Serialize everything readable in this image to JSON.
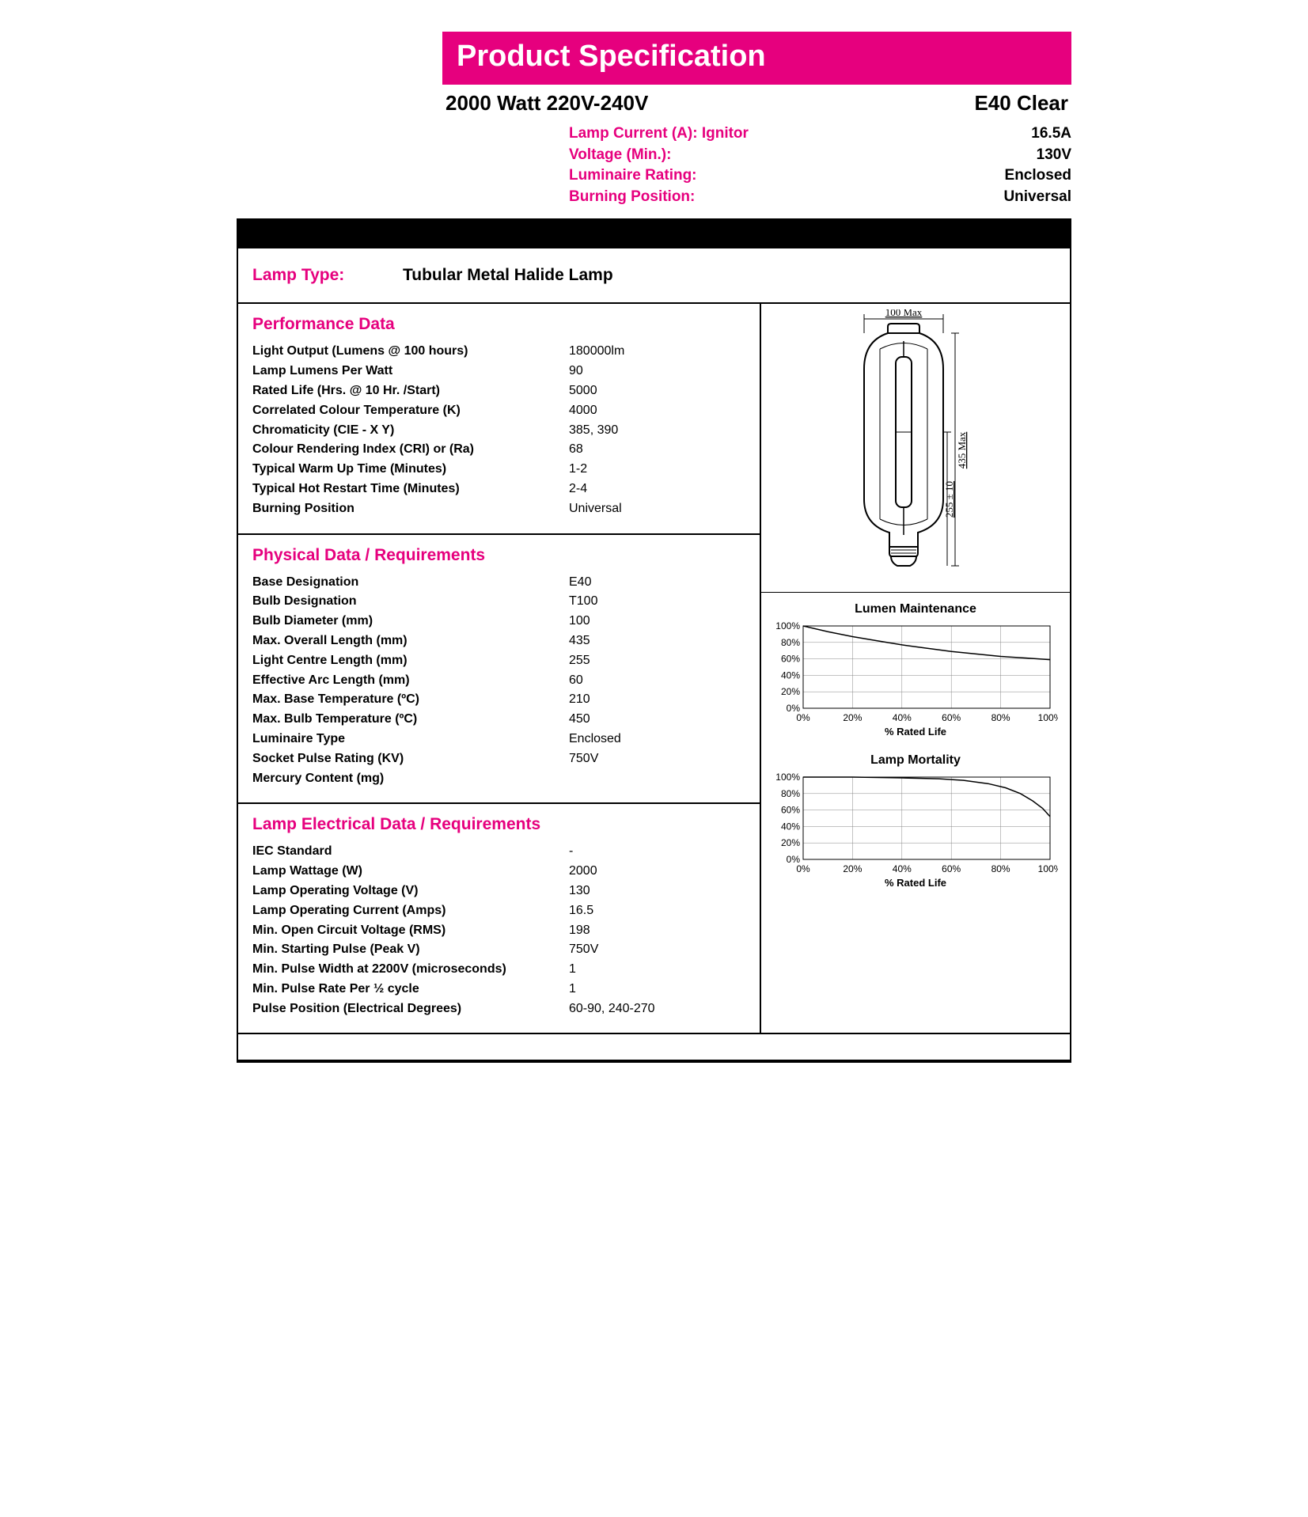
{
  "colors": {
    "accent": "#e6007e",
    "black": "#000000",
    "white": "#ffffff",
    "grid": "#888888"
  },
  "title": "Product Specification",
  "subtitle_left": "2000 Watt 220V-240V",
  "subtitle_right": "E40 Clear",
  "info": [
    {
      "label": "Lamp Current (A): Ignitor",
      "value": "16.5A"
    },
    {
      "label": "Voltage (Min.):",
      "value": "130V"
    },
    {
      "label": "Luminaire Rating:",
      "value": "Enclosed"
    },
    {
      "label": "Burning Position:",
      "value": "Universal"
    }
  ],
  "lamp_type": {
    "label": "Lamp Type:",
    "value": "Tubular Metal Halide Lamp"
  },
  "sections": {
    "performance": {
      "title": "Performance Data",
      "rows": [
        {
          "label": "Light Output (Lumens @ 100 hours)",
          "value": "180000lm"
        },
        {
          "label": "Lamp Lumens Per Watt",
          "value": "90"
        },
        {
          "label": "Rated Life (Hrs. @ 10 Hr. /Start)",
          "value": "5000"
        },
        {
          "label": "Correlated Colour Temperature (K)",
          "value": "4000"
        },
        {
          "label": "Chromaticity (CIE - X Y)",
          "value": "385, 390"
        },
        {
          "label": "Colour Rendering Index (CRI) or (Ra)",
          "value": "68"
        },
        {
          "label": "Typical Warm Up Time (Minutes)",
          "value": "1-2"
        },
        {
          "label": "Typical Hot Restart Time (Minutes)",
          "value": "2-4"
        },
        {
          "label": "Burning Position",
          "value": "Universal"
        }
      ]
    },
    "physical": {
      "title": "Physical Data / Requirements",
      "rows": [
        {
          "label": "Base Designation",
          "value": "E40"
        },
        {
          "label": "Bulb Designation",
          "value": "T100"
        },
        {
          "label": "Bulb Diameter (mm)",
          "value": "100"
        },
        {
          "label": "Max. Overall Length (mm)",
          "value": "435"
        },
        {
          "label": "Light Centre Length (mm)",
          "value": "255"
        },
        {
          "label": "Effective Arc Length (mm)",
          "value": "60"
        },
        {
          "label": "Max. Base Temperature (ºC)",
          "value": "210"
        },
        {
          "label": "Max. Bulb Temperature (ºC)",
          "value": "450"
        },
        {
          "label": "Luminaire Type",
          "value": "Enclosed"
        },
        {
          "label": "Socket Pulse Rating (KV)",
          "value": "750V"
        },
        {
          "label": "Mercury Content (mg)",
          "value": ""
        }
      ]
    },
    "electrical": {
      "title": "Lamp Electrical Data / Requirements",
      "rows": [
        {
          "label": "IEC Standard",
          "value": "-"
        },
        {
          "label": "Lamp Wattage (W)",
          "value": "2000"
        },
        {
          "label": "Lamp Operating Voltage (V)",
          "value": "130"
        },
        {
          "label": "Lamp Operating Current (Amps)",
          "value": "16.5"
        },
        {
          "label": "Min. Open Circuit Voltage (RMS)",
          "value": "198"
        },
        {
          "label": "Min. Starting Pulse (Peak V)",
          "value": "750V"
        },
        {
          "label": "Min. Pulse Width at 2200V (microseconds)",
          "value": "1"
        },
        {
          "label": "Min. Pulse Rate Per ½ cycle",
          "value": "1"
        },
        {
          "label": "Pulse Position (Electrical Degrees)",
          "value": "60-90, 240-270"
        }
      ]
    }
  },
  "diagram": {
    "top_dim": "100 Max",
    "side_dim_a": "435 Max",
    "side_dim_b": "255 ± 10"
  },
  "charts": {
    "xlabel": "% Rated Life",
    "xticks": [
      "0%",
      "20%",
      "40%",
      "60%",
      "80%",
      "100%"
    ],
    "yticks": [
      "0%",
      "20%",
      "40%",
      "60%",
      "80%",
      "100%"
    ],
    "lumen": {
      "title": "Lumen Maintenance",
      "points": [
        [
          0,
          100
        ],
        [
          10,
          93
        ],
        [
          20,
          87
        ],
        [
          30,
          82
        ],
        [
          40,
          77
        ],
        [
          50,
          73
        ],
        [
          60,
          69
        ],
        [
          70,
          66
        ],
        [
          80,
          63
        ],
        [
          90,
          61
        ],
        [
          100,
          59
        ]
      ]
    },
    "mortality": {
      "title": "Lamp Mortality",
      "points": [
        [
          0,
          100
        ],
        [
          20,
          100
        ],
        [
          40,
          99
        ],
        [
          55,
          98
        ],
        [
          65,
          96
        ],
        [
          75,
          92
        ],
        [
          82,
          87
        ],
        [
          88,
          80
        ],
        [
          93,
          71
        ],
        [
          97,
          62
        ],
        [
          100,
          52
        ]
      ]
    }
  }
}
